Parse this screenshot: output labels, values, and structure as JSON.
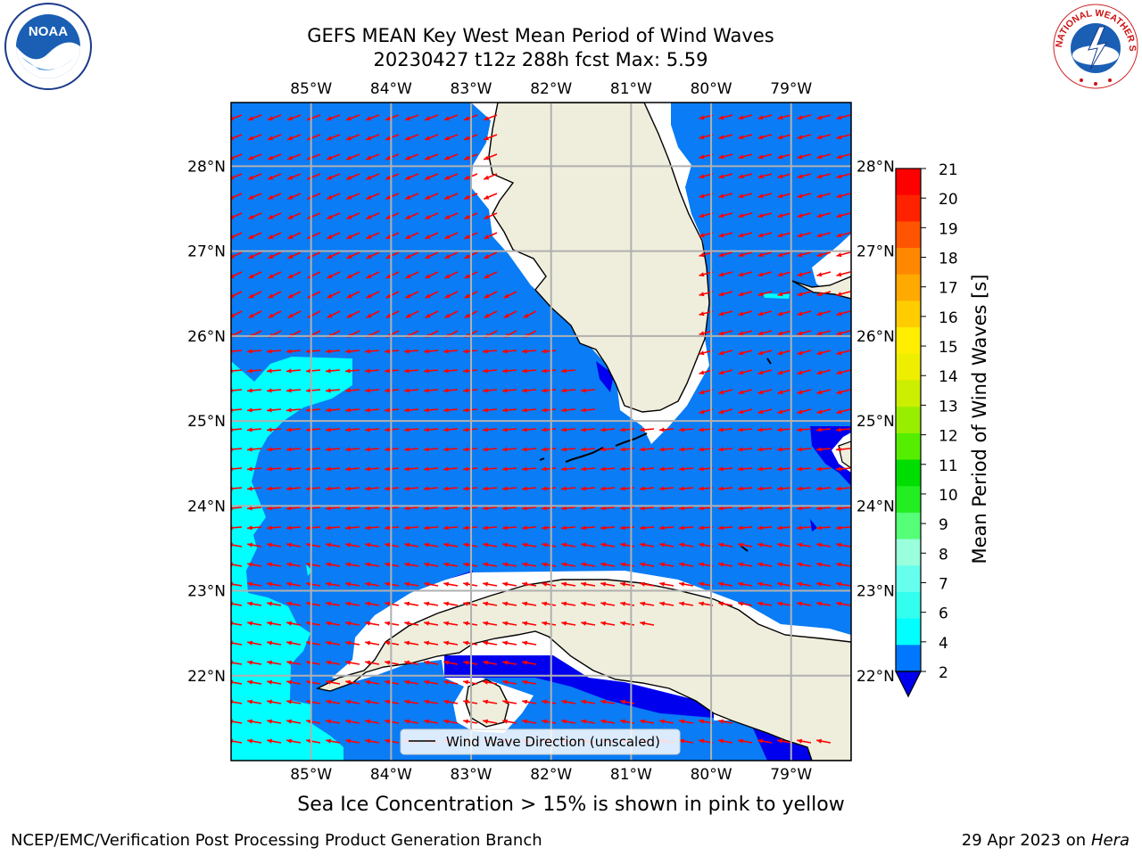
{
  "title": {
    "line1": "GEFS MEAN Key West Mean Period of Wind Waves",
    "line2": "20230427 t12z 288h fcst   Max: 5.59"
  },
  "map": {
    "lon_ticks": [
      "85°W",
      "84°W",
      "83°W",
      "82°W",
      "81°W",
      "80°W",
      "79°W"
    ],
    "lat_ticks": [
      "28°N",
      "27°N",
      "26°N",
      "25°N",
      "24°N",
      "23°N",
      "22°N"
    ],
    "legend_label": "Wind Wave Direction (unscaled)",
    "extent": {
      "lon_min": -86.0,
      "lon_max": -78.25,
      "lat_min": 21.0,
      "lat_max": 28.75
    }
  },
  "colorbar": {
    "label": "Mean Period of Wind Waves [s]",
    "ticks": [
      "2",
      "4",
      "6",
      "7",
      "8",
      "9",
      "10",
      "11",
      "12",
      "13",
      "14",
      "15",
      "16",
      "17",
      "18",
      "19",
      "20",
      "21"
    ],
    "colors": [
      "#0077ff",
      "#00ffff",
      "#33ffee",
      "#66ffee",
      "#99ffdd",
      "#55ff77",
      "#22ee22",
      "#00dd00",
      "#55ee00",
      "#99ee00",
      "#ccee00",
      "#eeee00",
      "#ffee00",
      "#ffcc00",
      "#ffaa00",
      "#ff8800",
      "#ff5500",
      "#ff2200",
      "#ff0000"
    ],
    "extend_color": "#0000ee"
  },
  "colors": {
    "ocean_main": "#0a7cf5",
    "ocean_shallow_cyan": "#00ffff",
    "ocean_deep_blue": "#0000ee",
    "land": "#efeedc",
    "arrows": "#ff0000",
    "grid": "#b0b0b0"
  },
  "logos": {
    "noaa": "NOAA",
    "nws": "NATIONAL WEATHER SERVICE"
  },
  "footer": {
    "ice_note": "Sea Ice Concentration > 15% is shown in pink to yellow",
    "credit": "NCEP/EMC/Verification Post Processing Product Generation Branch",
    "date": "29 Apr 2023 on",
    "host": "Hera"
  }
}
